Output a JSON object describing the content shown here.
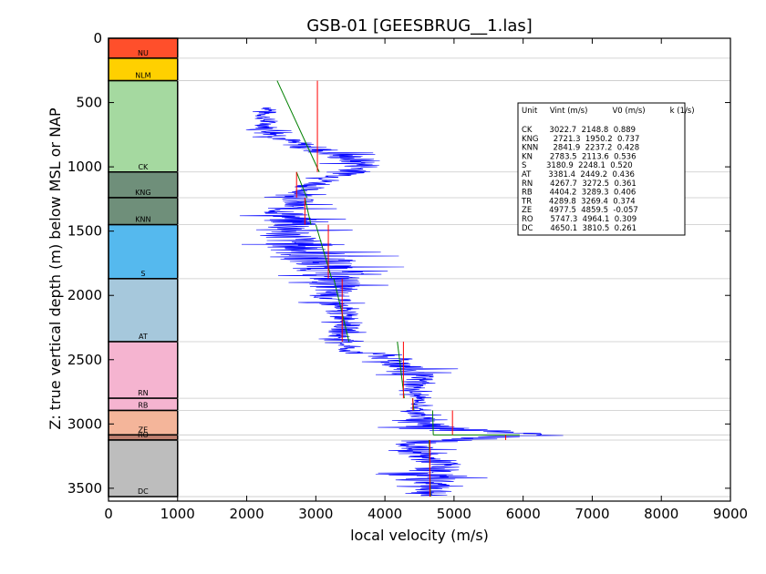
{
  "chart_data": {
    "type": "line",
    "title": "GSB-01 [GEESBRUG__1.las]",
    "xlabel": "local velocity (m/s)",
    "ylabel": "Z: true vertical depth (m) below MSL or NAP",
    "xlim": [
      0,
      9000
    ],
    "ylim": [
      3600,
      0
    ],
    "y_inverted": true,
    "grid": false,
    "x_ticks": [
      "0",
      "1000",
      "2000",
      "3000",
      "4000",
      "5000",
      "6000",
      "7000",
      "8000",
      "9000"
    ],
    "y_ticks": [
      "0",
      "500",
      "1000",
      "1500",
      "2000",
      "2500",
      "3000",
      "3500"
    ],
    "column_x_range": [
      0,
      1000
    ],
    "formations": [
      {
        "name": "NU",
        "top": 0,
        "base": 155,
        "color": "#ff4f2b"
      },
      {
        "name": "NLM",
        "top": 155,
        "base": 330,
        "color": "#ffd000"
      },
      {
        "name": "CK",
        "top": 330,
        "base": 1040,
        "color": "#a5d9a0"
      },
      {
        "name": "KNG",
        "top": 1040,
        "base": 1240,
        "color": "#6f8f7a"
      },
      {
        "name": "KNN",
        "top": 1240,
        "base": 1450,
        "color": "#6f8f7a"
      },
      {
        "name": "S",
        "top": 1450,
        "base": 1870,
        "color": "#55b9ee"
      },
      {
        "name": "AT",
        "top": 1870,
        "base": 2360,
        "color": "#a6c8dc"
      },
      {
        "name": "RN",
        "top": 2360,
        "base": 2800,
        "color": "#f5b4d0"
      },
      {
        "name": "RB",
        "top": 2800,
        "base": 2895,
        "color": "#f5b4d0"
      },
      {
        "name": "ZE",
        "top": 2895,
        "base": 3085,
        "color": "#f4b59a"
      },
      {
        "name": "RO",
        "top": 3085,
        "base": 3125,
        "color": "#c08070"
      },
      {
        "name": "DC",
        "top": 3125,
        "base": 3565,
        "color": "#bdbdbd"
      }
    ],
    "series": [
      {
        "style": "velocity-log",
        "color": "#0000ff",
        "x": [
          2350,
          2250,
          2300,
          2600,
          2900,
          3300,
          3600,
          3700,
          3500,
          3200,
          2900,
          2750,
          2550,
          2700,
          2600,
          2750,
          3000,
          3200,
          3300,
          3200,
          3300,
          3500,
          3350,
          3400,
          3450,
          3500,
          3900,
          4300,
          4500,
          4400,
          4500,
          4500,
          4450,
          4500,
          4600,
          4700,
          5800,
          6000,
          4400,
          4500,
          4800,
          4650,
          4700,
          4750,
          4650
        ],
        "y": [
          540,
          600,
          700,
          800,
          850,
          900,
          950,
          1000,
          1050,
          1100,
          1150,
          1250,
          1350,
          1450,
          1550,
          1600,
          1700,
          1800,
          1900,
          2000,
          2100,
          2200,
          2300,
          2350,
          2400,
          2450,
          2450,
          2550,
          2650,
          2750,
          2800,
          2850,
          2900,
          2950,
          3000,
          3030,
          3050,
          3090,
          3150,
          3250,
          3300,
          3400,
          3450,
          3500,
          3560
        ],
        "spread": [
          150,
          150,
          180,
          250,
          300,
          350,
          350,
          300,
          250,
          220,
          200,
          250,
          350,
          400,
          450,
          500,
          600,
          500,
          400,
          300,
          250,
          200,
          200,
          150,
          150,
          200,
          300,
          350,
          250,
          150,
          100,
          100,
          150,
          200,
          350,
          500,
          600,
          500,
          250,
          300,
          350,
          400,
          400,
          400,
          400
        ]
      },
      {
        "name": "V0 + k*z",
        "color": "#008000",
        "segments": [
          [
            [
              2440,
              330
            ],
            [
              3050,
              1040
            ]
          ],
          [
            [
              2720,
              1040
            ],
            [
              2870,
              1240
            ]
          ],
          [
            [
              2840,
              1240
            ],
            [
              2930,
              1450
            ]
          ],
          [
            [
              3000,
              1450
            ],
            [
              3230,
              1870
            ]
          ],
          [
            [
              3260,
              1870
            ],
            [
              3480,
              2360
            ]
          ],
          [
            [
              4180,
              2360
            ],
            [
              4280,
              2800
            ]
          ],
          [
            [
              4400,
              2800
            ],
            [
              4420,
              2895
            ]
          ],
          [
            [
              4690,
              2895
            ],
            [
              4700,
              3085
            ]
          ],
          [
            [
              4700,
              3085
            ],
            [
              5760,
              3085
            ]
          ],
          [
            [
              5760,
              3085
            ],
            [
              5950,
              3085
            ]
          ],
          [
            [
              4640,
              3125
            ],
            [
              4660,
              3565
            ]
          ]
        ]
      },
      {
        "name": "Vint",
        "color": "#ff0000",
        "segments": [
          [
            [
              3022.7,
              330
            ],
            [
              3022.7,
              1040
            ]
          ],
          [
            [
              2721.3,
              1040
            ],
            [
              2721.3,
              1240
            ]
          ],
          [
            [
              2841.9,
              1240
            ],
            [
              2841.9,
              1450
            ]
          ],
          [
            [
              3180.9,
              1450
            ],
            [
              3180.9,
              1870
            ]
          ],
          [
            [
              3381.4,
              1870
            ],
            [
              3381.4,
              2360
            ]
          ],
          [
            [
              4267.7,
              2360
            ],
            [
              4267.7,
              2800
            ]
          ],
          [
            [
              4404.2,
              2800
            ],
            [
              4404.2,
              2895
            ]
          ],
          [
            [
              4977.5,
              2895
            ],
            [
              4977.5,
              3085
            ]
          ],
          [
            [
              5747.3,
              3085
            ],
            [
              5747.3,
              3125
            ]
          ],
          [
            [
              4650.1,
              3125
            ],
            [
              4650.1,
              3565
            ]
          ]
        ]
      }
    ],
    "legend": {
      "placement": "top-right",
      "header": "Unit     Vint (m/s)          V0 (m/s)          k (1/s)",
      "rows": [
        "CK       3022.7  2148.8  0.889",
        "KNG      2721.3  1950.2  0.737",
        "KNN      2841.9  2237.2  0.428",
        "KN       2783.5  2113.6  0.536",
        "S        3180.9  2248.1  0.520",
        "AT       3381.4  2449.2  0.436",
        "RN       4267.7  3272.5  0.361",
        "RB       4404.2  3289.3  0.406",
        "TR       4289.8  3269.4  0.374",
        "ZE       4977.5  4859.5  -0.057",
        "RO       5747.3  4964.1  0.309",
        "DC       4650.1  3810.5  0.261"
      ]
    }
  }
}
